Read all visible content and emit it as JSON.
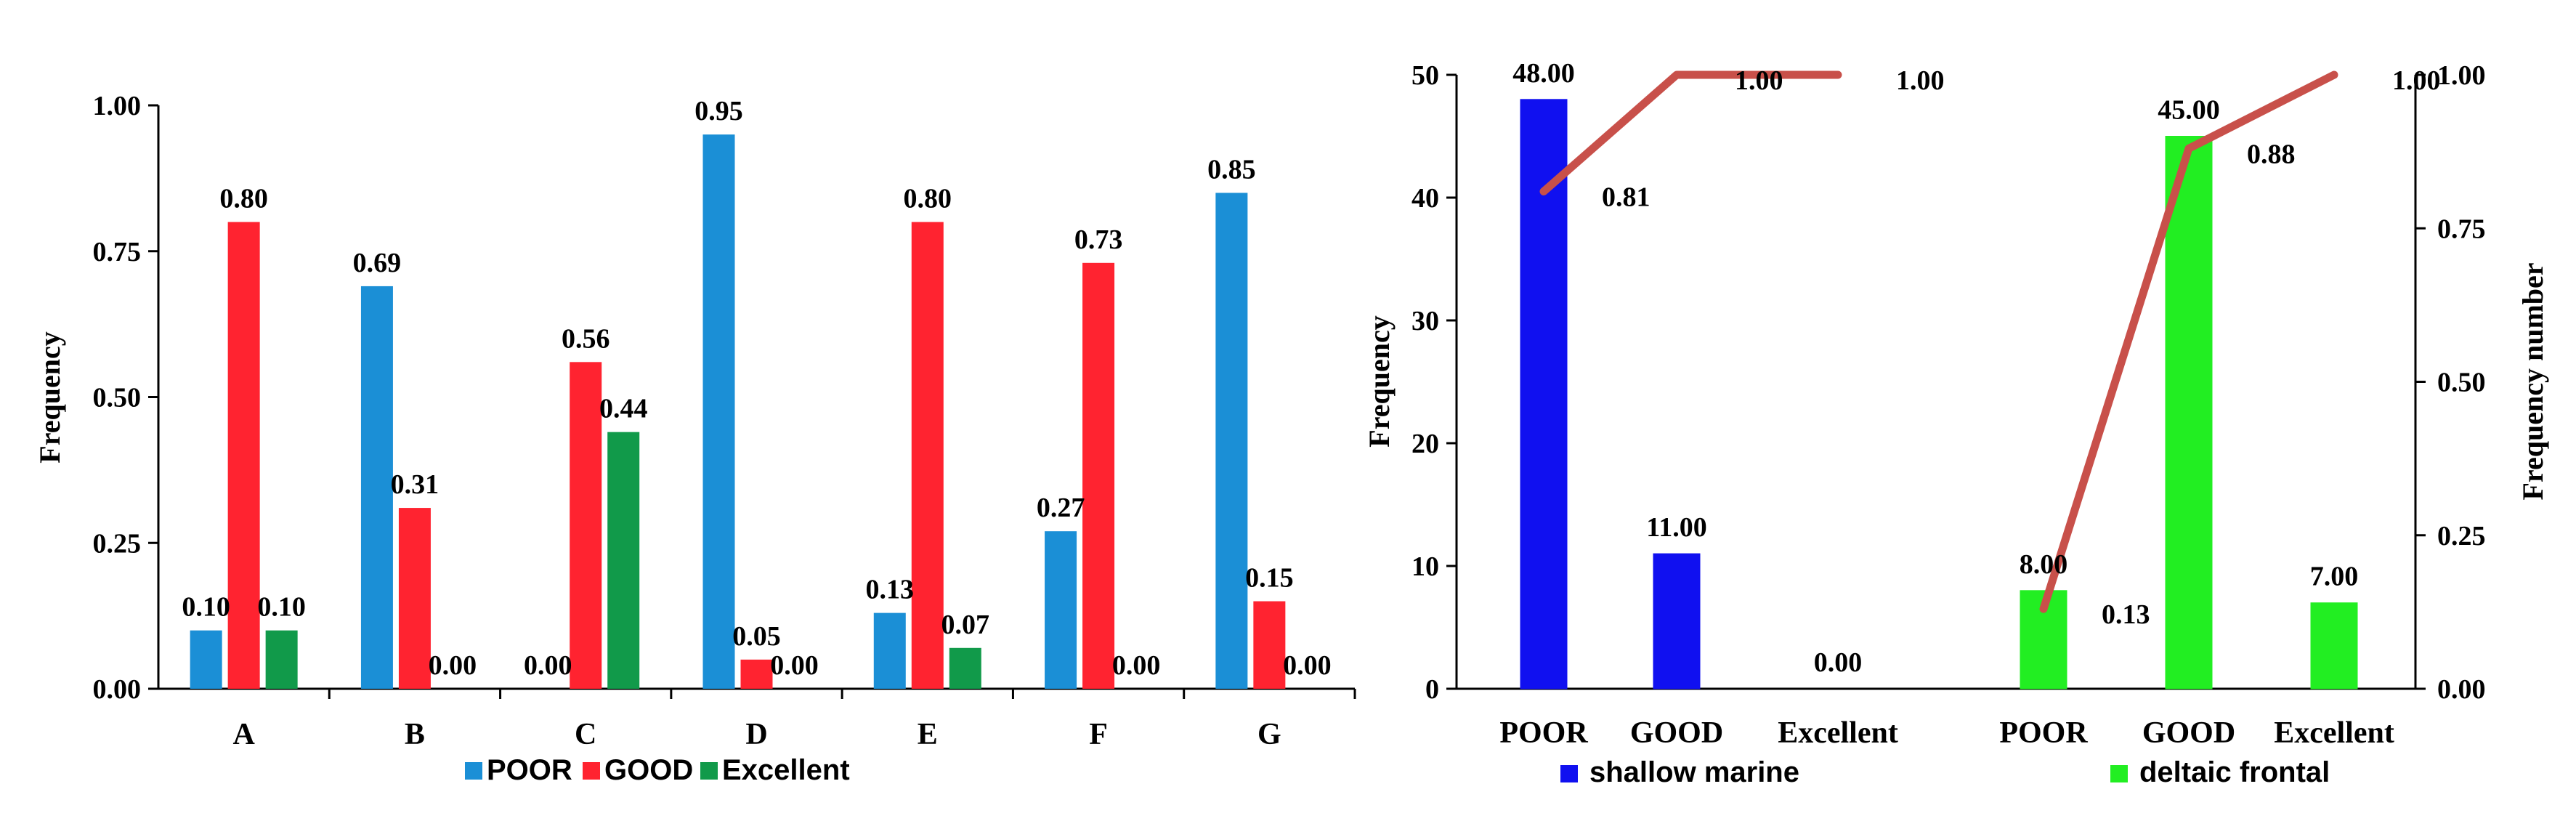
{
  "chart_data": [
    {
      "type": "bar",
      "categories": [
        "A",
        "B",
        "C",
        "D",
        "E",
        "F",
        "G"
      ],
      "series": [
        {
          "name": "POOR",
          "color": "#1b8fd6",
          "values": [
            0.1,
            0.69,
            0.0,
            0.95,
            0.13,
            0.27,
            0.85
          ]
        },
        {
          "name": "GOOD",
          "color": "#ff2330",
          "values": [
            0.8,
            0.31,
            0.56,
            0.05,
            0.8,
            0.73,
            0.15
          ]
        },
        {
          "name": "Excellent",
          "color": "#119a4a",
          "values": [
            0.1,
            0.0,
            0.44,
            0.0,
            0.07,
            0.0,
            0.0
          ]
        }
      ],
      "ylabel": "Frequency",
      "ylim": [
        0,
        1.0
      ],
      "yticks": [
        "0.00",
        "0.25",
        "0.50",
        "0.75",
        "1.00"
      ]
    },
    {
      "type": "bar",
      "groups": [
        {
          "name": "shallow marine",
          "color": "#1010f0",
          "categories": [
            "POOR",
            "GOOD",
            "Excellent"
          ],
          "values": [
            48,
            11,
            0
          ],
          "labels": [
            "48.00",
            "11.00",
            "0.00"
          ],
          "cumulative": [
            0.81,
            1.0,
            1.0
          ],
          "cumulative_labels": [
            "0.81",
            "1.00",
            "1.00"
          ]
        },
        {
          "name": "deltaic frontal",
          "color": "#22ee22",
          "categories": [
            "POOR",
            "GOOD",
            "Excellent"
          ],
          "values": [
            8,
            45,
            7
          ],
          "labels": [
            "8.00",
            "45.00",
            "7.00"
          ],
          "cumulative": [
            0.13,
            0.88,
            1.0
          ],
          "cumulative_labels": [
            "0.13",
            "0.88",
            "1.00"
          ]
        }
      ],
      "line_color": "#c8504a",
      "ylabel": "Frequency",
      "y2label": "Frequency number",
      "ylim": [
        0,
        50
      ],
      "yticks": [
        "0",
        "10",
        "20",
        "30",
        "40",
        "50"
      ],
      "y2lim": [
        0,
        1.0
      ],
      "y2ticks": [
        "0.00",
        "0.25",
        "0.50",
        "0.75",
        "1.00"
      ]
    }
  ]
}
